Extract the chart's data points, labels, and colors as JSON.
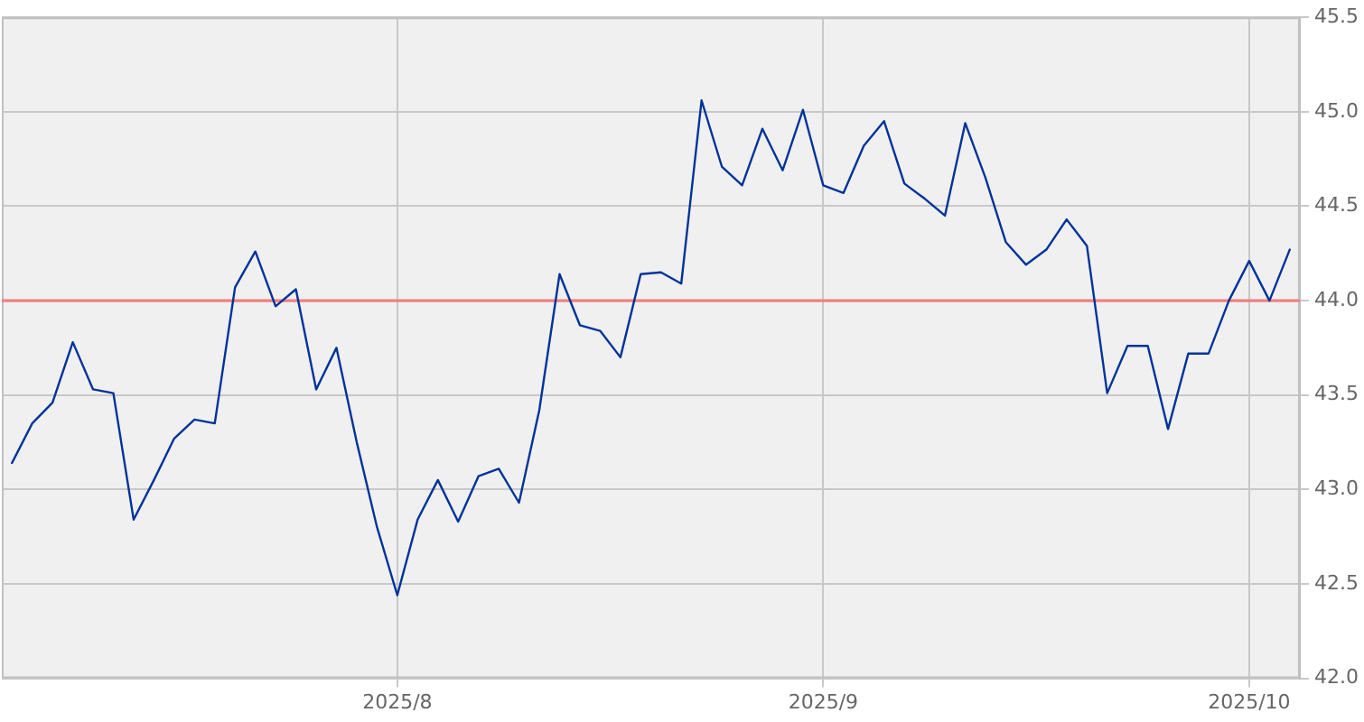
{
  "chart_data": {
    "type": "line",
    "categories": [
      null,
      null,
      null,
      null,
      null,
      null,
      null,
      null,
      null,
      null,
      null,
      null,
      null,
      null,
      null,
      null,
      null,
      null,
      null,
      "2025/8",
      null,
      null,
      null,
      null,
      null,
      null,
      null,
      null,
      null,
      null,
      null,
      null,
      null,
      null,
      null,
      null,
      null,
      null,
      null,
      null,
      "2025/9",
      null,
      null,
      null,
      null,
      null,
      null,
      null,
      null,
      null,
      null,
      null,
      null,
      null,
      null,
      null,
      null,
      null,
      null,
      null,
      null,
      "2025/10",
      null,
      null
    ],
    "values": [
      43.14,
      43.35,
      43.46,
      43.78,
      43.53,
      43.51,
      42.84,
      43.05,
      43.27,
      43.37,
      43.35,
      44.07,
      44.26,
      43.97,
      44.06,
      43.53,
      43.75,
      43.25,
      42.8,
      42.44,
      42.84,
      43.05,
      42.83,
      43.07,
      43.11,
      42.93,
      43.42,
      44.14,
      43.87,
      43.84,
      43.7,
      44.14,
      44.15,
      44.09,
      45.06,
      44.71,
      44.61,
      44.91,
      44.69,
      45.01,
      44.61,
      44.57,
      44.82,
      44.95,
      44.62,
      44.54,
      44.45,
      44.94,
      44.65,
      44.31,
      44.19,
      44.27,
      44.43,
      44.29,
      43.51,
      43.76,
      43.76,
      43.32,
      43.72,
      43.72,
      44.0,
      44.21,
      44.0,
      44.27
    ],
    "color": "#003399",
    "ylim": [
      42,
      45.5
    ],
    "yticks": [
      {
        "value": 42,
        "label": "42.0"
      },
      42.5,
      {
        "value": 43,
        "label": "43.0"
      },
      43.5,
      {
        "value": 44,
        "label": "44.0"
      },
      44.5,
      {
        "value": 45,
        "label": "45.0"
      },
      45.5
    ],
    "grid": true,
    "ref_lines": [
      {
        "axis": "y",
        "value": 44,
        "color": "#f08080"
      }
    ]
  }
}
